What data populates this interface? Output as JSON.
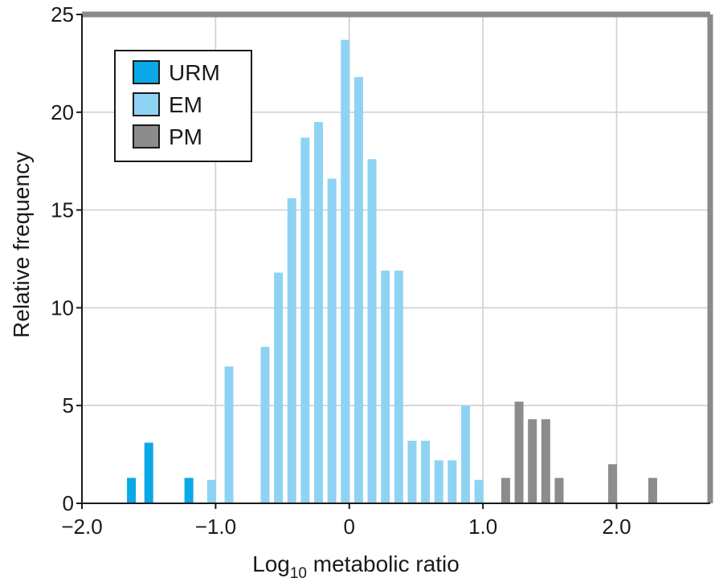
{
  "chart_data": {
    "type": "bar",
    "xlabel": "Log10 metabolic ratio",
    "xlabel_main": "Log",
    "xlabel_sub": "10",
    "xlabel_rest": " metabolic ratio",
    "ylabel": "Relative frequency",
    "xlim": [
      -2.0,
      2.7
    ],
    "ylim": [
      0,
      25
    ],
    "x_ticks": [
      -2.0,
      -1.0,
      0,
      1.0,
      2.0
    ],
    "x_tick_labels": [
      "−2.0",
      "−1.0",
      "0",
      "1.0",
      "2.0"
    ],
    "y_ticks": [
      0,
      5,
      10,
      15,
      20,
      25
    ],
    "y_tick_labels": [
      "0",
      "5",
      "10",
      "15",
      "20",
      "25"
    ],
    "grid": true,
    "legend_position": "top-left",
    "series": [
      {
        "name": "URM",
        "color": "#0aa8e6",
        "x": [
          -1.63,
          -1.5,
          -1.2
        ],
        "values": [
          1.3,
          3.1,
          1.3
        ]
      },
      {
        "name": "EM",
        "color": "#8fd3f4",
        "x": [
          -1.03,
          -0.9,
          -0.63,
          -0.53,
          -0.43,
          -0.33,
          -0.23,
          -0.13,
          -0.03,
          0.07,
          0.17,
          0.27,
          0.37,
          0.47,
          0.57,
          0.67,
          0.77,
          0.87,
          0.97
        ],
        "values": [
          1.2,
          7.0,
          8.0,
          11.8,
          15.6,
          18.7,
          19.5,
          16.6,
          23.7,
          21.8,
          17.6,
          11.9,
          11.9,
          3.2,
          3.2,
          2.2,
          2.2,
          5.0,
          1.2
        ]
      },
      {
        "name": "PM",
        "color": "#8b8c8e",
        "x": [
          1.17,
          1.27,
          1.37,
          1.47,
          1.57,
          1.97,
          2.27
        ],
        "values": [
          1.3,
          5.2,
          4.3,
          4.3,
          1.3,
          2.0,
          1.3
        ]
      }
    ]
  }
}
